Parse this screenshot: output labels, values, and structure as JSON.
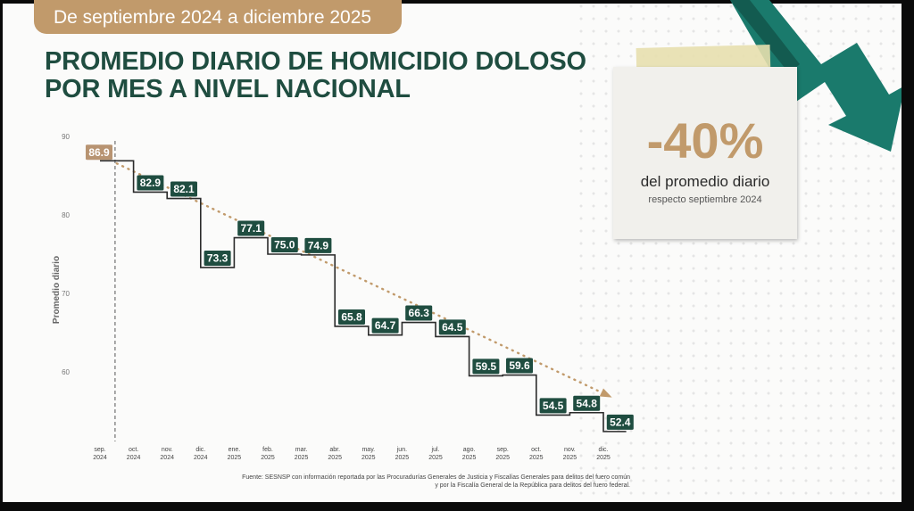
{
  "header": {
    "period": "De septiembre 2024 a diciembre 2025",
    "title_line1": "PROMEDIO DIARIO DE HOMICIDIO DOLOSO",
    "title_line2": "POR MES A NIVEL NACIONAL"
  },
  "highlight": {
    "value": "-40%",
    "line1": "del promedio diario",
    "line2": "respecto septiembre 2024"
  },
  "colors": {
    "brand_green": "#1f4d40",
    "accent_gold": "#c19a6b",
    "arrow_teal": "#1a7a6c"
  },
  "source": {
    "line1": "Fuente: SESNSP con información reportada por las Procuradurías Generales de Justicia y Fiscalías Generales para delitos del fuero común",
    "line2": "y por la Fiscalía General de la República para delitos del fuero federal."
  },
  "chart_data": {
    "type": "line",
    "step": true,
    "ylabel": "Promedio diario",
    "ylim": [
      52,
      90
    ],
    "yticks": [
      60,
      70,
      80,
      90
    ],
    "categories": [
      [
        "sep.",
        "2024"
      ],
      [
        "oct.",
        "2024"
      ],
      [
        "nov.",
        "2024"
      ],
      [
        "dic.",
        "2024"
      ],
      [
        "ene.",
        "2025"
      ],
      [
        "feb.",
        "2025"
      ],
      [
        "mar.",
        "2025"
      ],
      [
        "abr.",
        "2025"
      ],
      [
        "may.",
        "2025"
      ],
      [
        "jun.",
        "2025"
      ],
      [
        "jul.",
        "2025"
      ],
      [
        "ago.",
        "2025"
      ],
      [
        "sep.",
        "2025"
      ],
      [
        "oct.",
        "2025"
      ],
      [
        "nov.",
        "2025"
      ],
      [
        "dic.",
        "2025"
      ]
    ],
    "values": [
      86.9,
      82.9,
      82.1,
      73.3,
      77.1,
      75.0,
      74.9,
      65.8,
      64.7,
      66.3,
      64.5,
      59.5,
      59.6,
      54.5,
      54.8,
      52.4
    ],
    "labels": [
      "86.9",
      "82.9",
      "82.1",
      "73.3",
      "77.1",
      "75.0",
      "74.9",
      "65.8",
      "64.7",
      "66.3",
      "64.5",
      "59.5",
      "59.6",
      "54.5",
      "54.8",
      "52.4"
    ],
    "trend": "dotted arrow from first to last value",
    "grid": false
  }
}
